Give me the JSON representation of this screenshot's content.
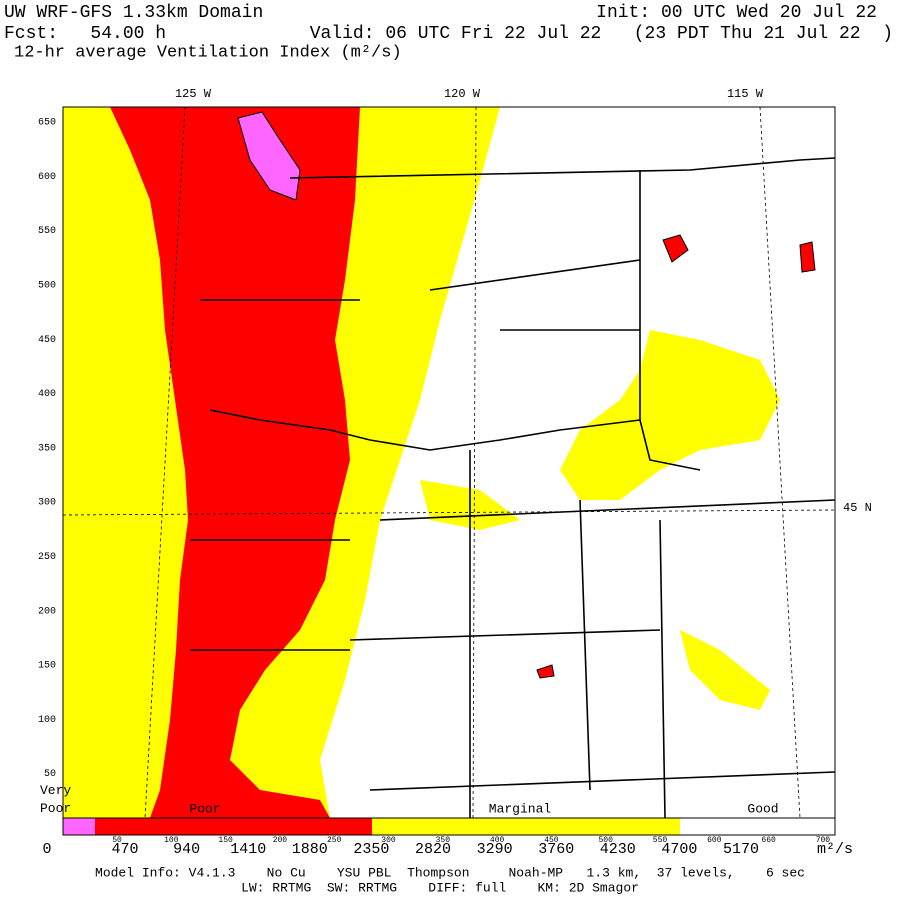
{
  "header": {
    "title": "UW WRF-GFS 1.33km Domain",
    "init": "Init: 00 UTC Wed 20 Jul 22",
    "forecast": "Fcst:   54.00 h",
    "valid": "Valid: 06 UTC Fri 22 Jul 22   (23 PDT Thu 21 Jul 22  )",
    "field": "12-hr average Ventilation Index (m²/s)"
  },
  "map": {
    "longitude_labels": [
      "125 W",
      "120 W",
      "115 W"
    ],
    "latitude_label": "45 N",
    "y_grid_labels": [
      650,
      600,
      550,
      500,
      450,
      400,
      350,
      300,
      250,
      200,
      150,
      100,
      50
    ],
    "x_grid_labels": [
      50,
      100,
      150,
      200,
      250,
      300,
      350,
      400,
      450,
      500,
      550,
      600,
      660,
      700
    ]
  },
  "legend": {
    "categories": [
      "Very Poor",
      "Poor",
      "Marginal",
      "Good"
    ],
    "colorbar_labels": [
      0,
      470,
      940,
      1410,
      1880,
      2350,
      2820,
      3290,
      3760,
      4230,
      4700,
      5170
    ],
    "unit": "m²/s"
  },
  "footer": {
    "line1": "Model Info: V4.1.3    No Cu    YSU PBL  Thompson     Noah-MP   1.3 km,  37 levels,    6 sec",
    "line2": "LW: RRTMG  SW: RRTMG    DIFF: full    KM: 2D Smagor"
  }
}
